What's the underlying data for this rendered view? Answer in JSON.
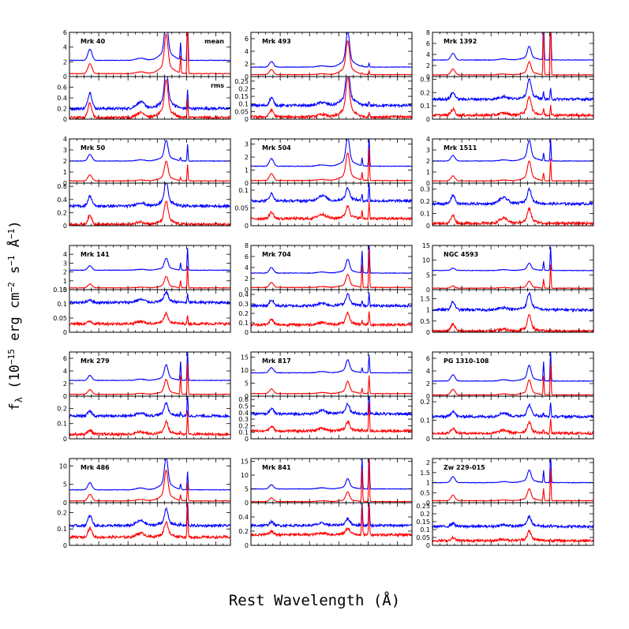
{
  "figure": {
    "x_axis_title": "Rest Wavelength (Å)",
    "y_axis_title_parts": [
      "f",
      "λ",
      " (10",
      "−15",
      " erg cm",
      "−2",
      " s",
      "−1",
      " Å",
      "−1",
      ")"
    ]
  },
  "chart_data": {
    "type": "line",
    "layout": "grid of 18 objects in 3 columns × 6 rows; each object has a mean spectrum panel above an rms spectrum panel",
    "x_range": [
      4200,
      5300
    ],
    "x_ticks": [
      4200,
      4400,
      4600,
      4800,
      5000,
      5200
    ],
    "series_colors": {
      "blue": "#0000ff",
      "red": "#ff0000"
    },
    "line_centers": {
      "Hgamma": 4340,
      "HeII": 4686,
      "Hbeta": 4861,
      "OIII_4959": 4959,
      "OIII_5007": 5007
    },
    "panel_labels": {
      "mean": "mean",
      "rms": "rms"
    },
    "objects": [
      {
        "name": "Mrk 40",
        "mean": {
          "ylim": [
            0,
            6
          ],
          "yticks": [
            0,
            2,
            4,
            6
          ],
          "blue_level": 2.2,
          "red_level": 0.4,
          "lines": {
            "hg": 1.5,
            "he": 0.3,
            "hb": 4.5,
            "o1": 2.3,
            "o2": 10
          }
        },
        "rms": {
          "ylim": [
            0,
            0.8
          ],
          "yticks": [
            0,
            0.2,
            0.4,
            0.6
          ],
          "blue_level": 0.2,
          "red_level": 0.03,
          "lines": {
            "hg": 0.3,
            "he": 0.12,
            "hb": 0.6,
            "o1": 0,
            "o2": 0.35
          }
        }
      },
      {
        "name": "Mrk 493",
        "mean": {
          "ylim": [
            0,
            7
          ],
          "yticks": [
            0,
            2,
            4,
            6
          ],
          "blue_level": 1.5,
          "red_level": 0.3,
          "lines": {
            "hg": 0.9,
            "he": 0.2,
            "hb": 4.5,
            "o1": 0.2,
            "o2": 0.6
          }
        },
        "rms": {
          "ylim": [
            0,
            0.28
          ],
          "yticks": [
            0,
            0.05,
            0.1,
            0.15,
            0.2,
            0.25
          ],
          "blue_level": 0.09,
          "red_level": 0.015,
          "lines": {
            "hg": 0.05,
            "he": 0.02,
            "hb": 0.22,
            "o1": 0,
            "o2": 0.03
          }
        }
      },
      {
        "name": "Mrk 1392",
        "mean": {
          "ylim": [
            0,
            8
          ],
          "yticks": [
            0,
            2,
            4,
            6,
            8
          ],
          "blue_level": 3,
          "red_level": 0.3,
          "lines": {
            "hg": 1.2,
            "he": 0.2,
            "hb": 2,
            "o1": 9,
            "o2": 12
          }
        },
        "rms": {
          "ylim": [
            0,
            0.32
          ],
          "yticks": [
            0,
            0.1,
            0.2,
            0.3
          ],
          "blue_level": 0.15,
          "red_level": 0.03,
          "lines": {
            "hg": 0.05,
            "he": 0.02,
            "hb": 0.12,
            "o1": 0.05,
            "o2": 0.08
          }
        }
      },
      {
        "name": "Mrk 50",
        "mean": {
          "ylim": [
            0,
            4
          ],
          "yticks": [
            0,
            1,
            2,
            3,
            4
          ],
          "blue_level": 2,
          "red_level": 0.2,
          "lines": {
            "hg": 0.6,
            "he": 0.1,
            "hb": 1.5,
            "o1": 0.3,
            "o2": 1.5
          }
        },
        "rms": {
          "ylim": [
            0,
            0.65
          ],
          "yticks": [
            0,
            0.2,
            0.4,
            0.6
          ],
          "blue_level": 0.3,
          "red_level": 0.02,
          "lines": {
            "hg": 0.15,
            "he": 0.05,
            "hb": 0.3,
            "o1": 0,
            "o2": 0.01
          }
        }
      },
      {
        "name": "Mrk 504",
        "mean": {
          "ylim": [
            0,
            3.4
          ],
          "yticks": [
            0,
            1,
            2,
            3
          ],
          "blue_level": 1.3,
          "red_level": 0.2,
          "lines": {
            "hg": 0.6,
            "he": 0.1,
            "hb": 1.8,
            "o1": 0.6,
            "o2": 2.5
          }
        },
        "rms": {
          "ylim": [
            0,
            0.12
          ],
          "yticks": [
            0,
            0.05,
            0.1
          ],
          "blue_level": 0.07,
          "red_level": 0.02,
          "lines": {
            "hg": 0.02,
            "he": 0.015,
            "hb": 0.03,
            "o1": 0.02,
            "o2": 0.05
          }
        }
      },
      {
        "name": "Mrk 1511",
        "mean": {
          "ylim": [
            0,
            4
          ],
          "yticks": [
            0,
            1,
            2,
            3,
            4
          ],
          "blue_level": 2,
          "red_level": 0.2,
          "lines": {
            "hg": 0.5,
            "he": 0.1,
            "hb": 1.5,
            "o1": 0.7,
            "o2": 2
          }
        },
        "rms": {
          "ylim": [
            0,
            0.35
          ],
          "yticks": [
            0,
            0.1,
            0.2,
            0.3
          ],
          "blue_level": 0.18,
          "red_level": 0.02,
          "lines": {
            "hg": 0.07,
            "he": 0.05,
            "hb": 0.1,
            "o1": 0,
            "o2": 0
          }
        }
      },
      {
        "name": "Mrk 141",
        "mean": {
          "ylim": [
            0,
            5
          ],
          "yticks": [
            0,
            1,
            2,
            3,
            4
          ],
          "blue_level": 2.2,
          "red_level": 0.2,
          "lines": {
            "hg": 0.5,
            "he": 0.1,
            "hb": 1.1,
            "o1": 0.8,
            "o2": 2.5
          }
        },
        "rms": {
          "ylim": [
            0,
            0.15
          ],
          "yticks": [
            0,
            0.05,
            0.1,
            0.15
          ],
          "blue_level": 0.105,
          "red_level": 0.03,
          "lines": {
            "hg": 0.01,
            "he": 0.01,
            "hb": 0.03,
            "o1": 0,
            "o2": 0.03
          }
        }
      },
      {
        "name": "Mrk 704",
        "mean": {
          "ylim": [
            0,
            8
          ],
          "yticks": [
            0,
            2,
            4,
            6,
            8
          ],
          "blue_level": 3,
          "red_level": 0.4,
          "lines": {
            "hg": 1,
            "he": 0.2,
            "hb": 2,
            "o1": 4,
            "o2": 7
          }
        },
        "rms": {
          "ylim": [
            0,
            0.45
          ],
          "yticks": [
            0,
            0.1,
            0.2,
            0.3,
            0.4
          ],
          "blue_level": 0.28,
          "red_level": 0.08,
          "lines": {
            "hg": 0.06,
            "he": 0.03,
            "hb": 0.1,
            "o1": 0.05,
            "o2": 0.15
          }
        }
      },
      {
        "name": "NGC 4593",
        "mean": {
          "ylim": [
            0,
            15
          ],
          "yticks": [
            0,
            5,
            10,
            15
          ],
          "blue_level": 6.5,
          "red_level": 0.5,
          "lines": {
            "hg": 0.8,
            "he": 0.3,
            "hb": 2,
            "o1": 3,
            "o2": 8
          }
        },
        "rms": {
          "ylim": [
            0,
            1.9
          ],
          "yticks": [
            0,
            0.5,
            1,
            1.5
          ],
          "blue_level": 1,
          "red_level": 0.05,
          "lines": {
            "hg": 0.35,
            "he": 0.1,
            "hb": 0.6,
            "o1": 0,
            "o2": 0.05
          }
        }
      },
      {
        "name": "Mrk 279",
        "mean": {
          "ylim": [
            0,
            7
          ],
          "yticks": [
            0,
            2,
            4,
            6
          ],
          "blue_level": 2.5,
          "red_level": 0.3,
          "lines": {
            "hg": 0.8,
            "he": 0.2,
            "hb": 2,
            "o1": 3,
            "o2": 5
          }
        },
        "rms": {
          "ylim": [
            0,
            0.28
          ],
          "yticks": [
            0,
            0.1,
            0.2
          ],
          "blue_level": 0.15,
          "red_level": 0.03,
          "lines": {
            "hg": 0.03,
            "he": 0.02,
            "hb": 0.07,
            "o1": 0.02,
            "o2": 0.15
          }
        }
      },
      {
        "name": "Mrk 817",
        "mean": {
          "ylim": [
            0,
            17
          ],
          "yticks": [
            0,
            5,
            10,
            15
          ],
          "blue_level": 9,
          "red_level": 1,
          "lines": {
            "hg": 2,
            "he": 0.5,
            "hb": 4,
            "o1": 2,
            "o2": 7
          }
        },
        "rms": {
          "ylim": [
            0,
            0.65
          ],
          "yticks": [
            0,
            0.1,
            0.2,
            0.3,
            0.4,
            0.5,
            0.6
          ],
          "blue_level": 0.38,
          "red_level": 0.12,
          "lines": {
            "hg": 0.08,
            "he": 0.05,
            "hb": 0.12,
            "o1": 0.02,
            "o2": 0.45
          }
        }
      },
      {
        "name": "PG 1310-108",
        "mean": {
          "ylim": [
            0,
            7
          ],
          "yticks": [
            0,
            2,
            4,
            6
          ],
          "blue_level": 2.4,
          "red_level": 0.2,
          "lines": {
            "hg": 1,
            "he": 0.2,
            "hb": 2,
            "o1": 3,
            "o2": 5
          }
        },
        "rms": {
          "ylim": [
            0,
            0.23
          ],
          "yticks": [
            0,
            0.1,
            0.2
          ],
          "blue_level": 0.12,
          "red_level": 0.03,
          "lines": {
            "hg": 0.03,
            "he": 0.02,
            "hb": 0.05,
            "o1": 0.02,
            "o2": 0.08
          }
        }
      },
      {
        "name": "Mrk 486",
        "mean": {
          "ylim": [
            0,
            12
          ],
          "yticks": [
            0,
            5,
            10
          ],
          "blue_level": 3.5,
          "red_level": 0.5,
          "lines": {
            "hg": 2,
            "he": 0.5,
            "hb": 7,
            "o1": 1.5,
            "o2": 5
          }
        },
        "rms": {
          "ylim": [
            0,
            0.26
          ],
          "yticks": [
            0,
            0.1,
            0.2
          ],
          "blue_level": 0.12,
          "red_level": 0.05,
          "lines": {
            "hg": 0.06,
            "he": 0.03,
            "hb": 0.08,
            "o1": 0.01,
            "o2": 0.2
          }
        }
      },
      {
        "name": "Mrk 841",
        "mean": {
          "ylim": [
            0,
            16
          ],
          "yticks": [
            0,
            5,
            10,
            15
          ],
          "blue_level": 5,
          "red_level": 0.4,
          "lines": {
            "hg": 1.5,
            "he": 0.4,
            "hb": 3,
            "o1": 12,
            "o2": 16
          }
        },
        "rms": {
          "ylim": [
            0,
            0.6
          ],
          "yticks": [
            0,
            0.2,
            0.4
          ],
          "blue_level": 0.28,
          "red_level": 0.15,
          "lines": {
            "hg": 0.05,
            "he": 0.03,
            "hb": 0.08,
            "o1": 0.4,
            "o2": 0.45
          }
        }
      },
      {
        "name": "Zw 229-015",
        "mean": {
          "ylim": [
            0,
            2.2
          ],
          "yticks": [
            0,
            0.5,
            1,
            1.5,
            2
          ],
          "blue_level": 1,
          "red_level": 0.1,
          "lines": {
            "hg": 0.3,
            "he": 0.05,
            "hb": 0.5,
            "o1": 0.6,
            "o2": 1.6
          }
        },
        "rms": {
          "ylim": [
            0,
            0.27
          ],
          "yticks": [
            0,
            0.05,
            0.1,
            0.15,
            0.2,
            0.25
          ],
          "blue_level": 0.12,
          "red_level": 0.03,
          "lines": {
            "hg": 0.02,
            "he": 0.01,
            "hb": 0.05,
            "o1": 0,
            "o2": 0.01
          }
        }
      }
    ]
  }
}
